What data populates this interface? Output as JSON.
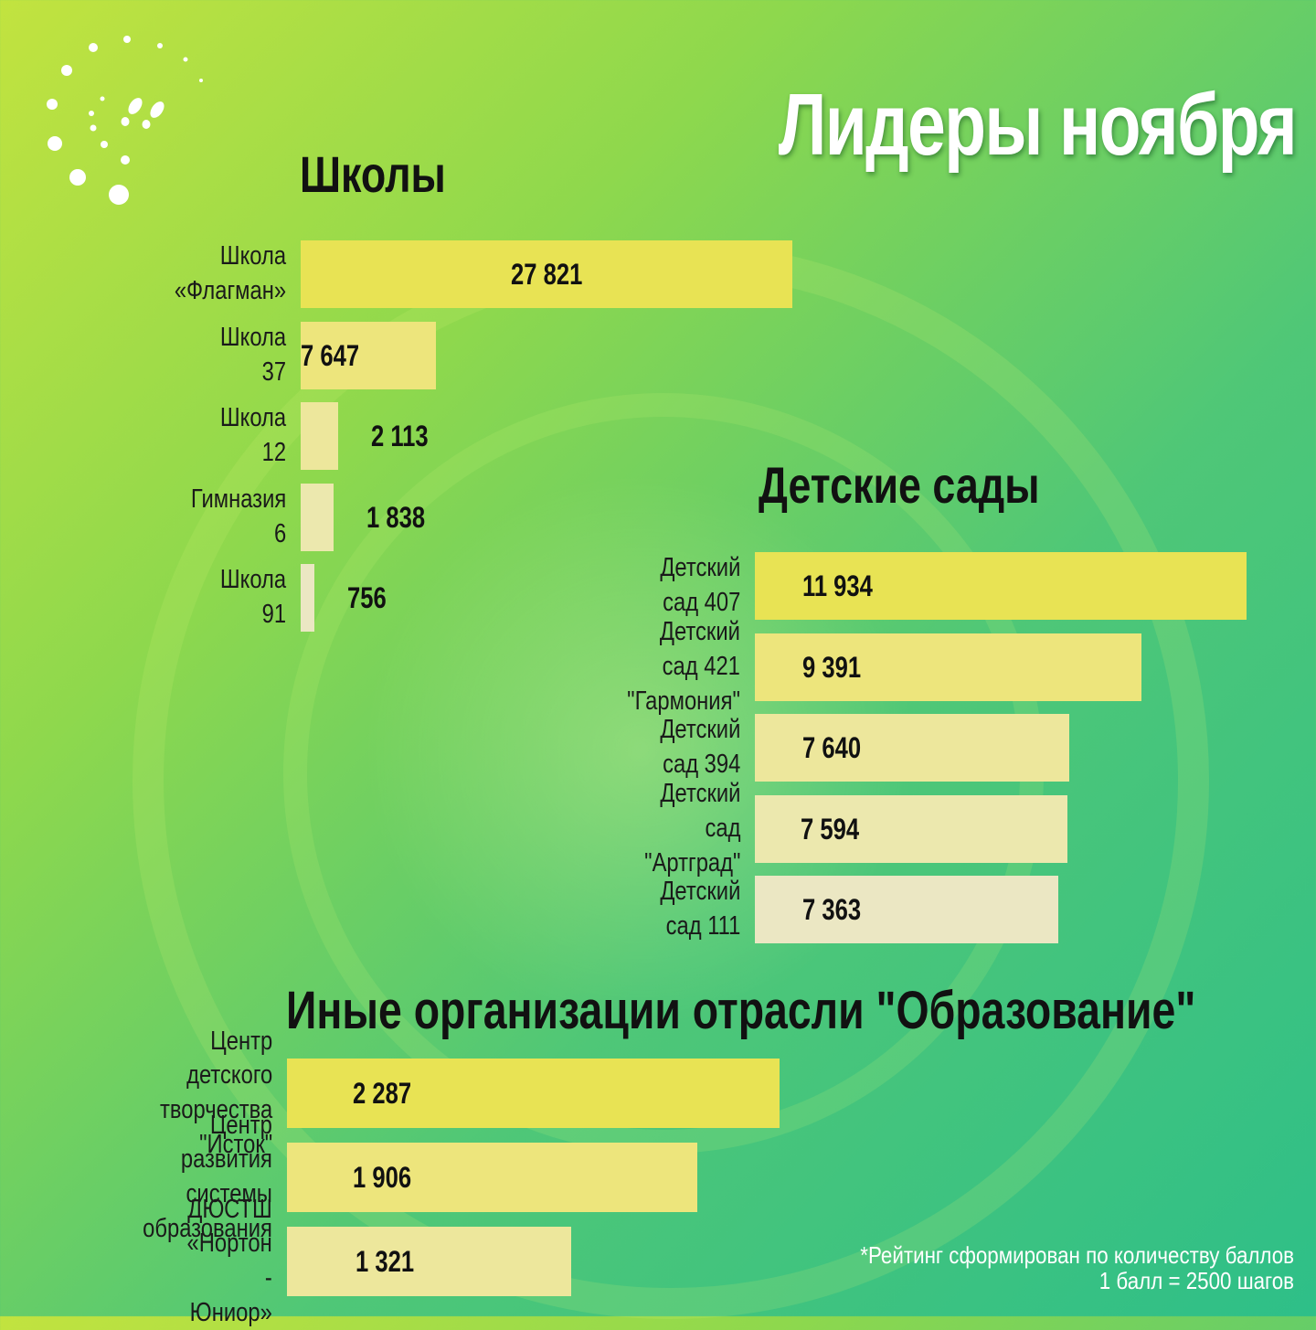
{
  "header": {
    "title": "Лидеры ноября"
  },
  "logo": {
    "icon": "footprints-icon"
  },
  "footnote": {
    "line1": "*Рейтинг сформирован по количеству баллов",
    "line2": "1 балл =  2500 шагов"
  },
  "colors": {
    "bar_shades": [
      "#e8e354",
      "#ede57c",
      "#ede79c",
      "#ece8ae",
      "#ebe7c3"
    ],
    "bg_start": "#c2e33f",
    "bg_end": "#2ebf88",
    "title": "#ffffff",
    "text": "#111111"
  },
  "chart_data": [
    {
      "type": "bar",
      "orientation": "horizontal",
      "title": "Школы",
      "categories": [
        "Школа «Флагман»",
        "Школа 37",
        "Школа 12",
        "Гимназия 6",
        "Школа 91"
      ],
      "values": [
        27821,
        7647,
        2113,
        1838,
        756
      ],
      "value_labels": [
        "27 821",
        "7 647",
        "2 113",
        "1 838",
        "756"
      ],
      "xlim": [
        0,
        27821
      ],
      "grid": false
    },
    {
      "type": "bar",
      "orientation": "horizontal",
      "title": "Детские сады",
      "categories": [
        "Детский сад 407",
        "Детский сад 421\n\"Гармония\"",
        "Детский сад 394",
        "Детский сад \"Артград\"",
        "Детский сад 111"
      ],
      "values": [
        11934,
        9391,
        7640,
        7594,
        7363
      ],
      "value_labels": [
        "11 934",
        "9 391",
        "7 640",
        "7 594",
        "7 363"
      ],
      "xlim": [
        0,
        11934
      ],
      "grid": false
    },
    {
      "type": "bar",
      "orientation": "horizontal",
      "title": "Иные организации отрасли \"Образование\"",
      "categories": [
        "Центр детского\nтворчества \"Исток\"",
        "Центр развития\nсистемы образования",
        "ДЮСТШ\n«Нортон - Юниор»"
      ],
      "values": [
        2287,
        1906,
        1321
      ],
      "value_labels": [
        "2 287",
        "1 906",
        "1 321"
      ],
      "xlim": [
        0,
        2287
      ],
      "grid": false
    }
  ]
}
